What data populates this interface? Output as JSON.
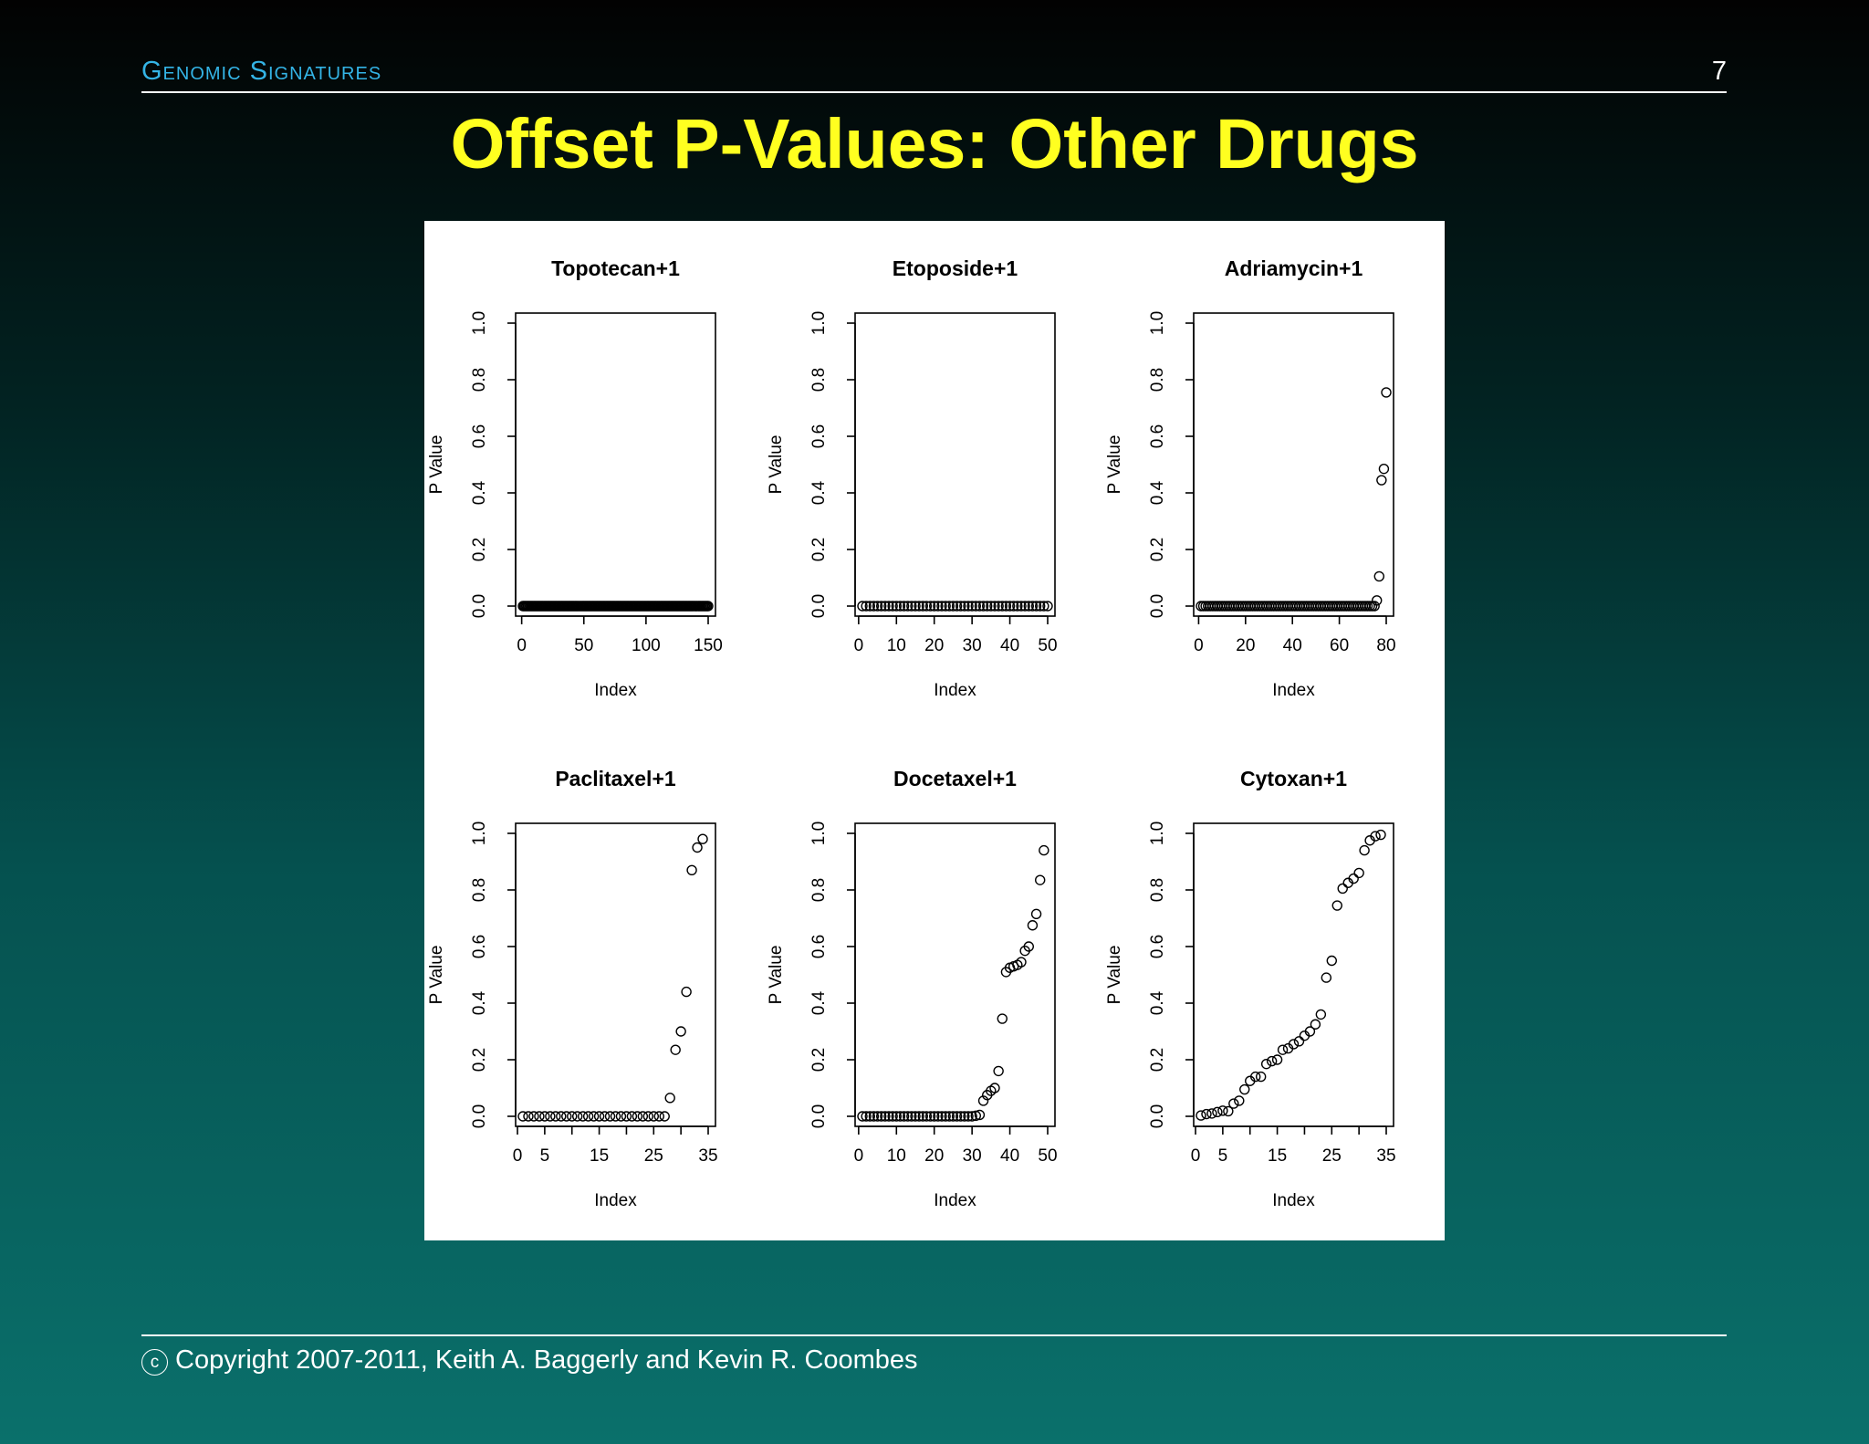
{
  "header": {
    "section": "Genomic Signatures",
    "page_number": "7"
  },
  "title": "Offset P-Values: Other Drugs",
  "footer": {
    "copyright_symbol": "c",
    "copyright": "Copyright 2007-2011, Keith A. Baggerly and Kevin R. Coombes"
  },
  "colors": {
    "title": "#ffff20",
    "section": "#34b4e6",
    "text": "#ffffff",
    "panel": "#ffffff",
    "marks": "#000000"
  },
  "chart_data": [
    {
      "type": "scatter",
      "title": "Topotecan+1",
      "xlabel": "Index",
      "ylabel": "P Value",
      "xlim": [
        1,
        150
      ],
      "ylim": [
        0,
        1
      ],
      "xticks": [
        0,
        50,
        100,
        150
      ],
      "yticks": [
        "0.0",
        "0.2",
        "0.4",
        "0.6",
        "0.8",
        "1.0"
      ],
      "note_values": "150 points, all approximately 0",
      "values": [
        0,
        0,
        0,
        0,
        0,
        0,
        0,
        0,
        0,
        0,
        0,
        0,
        0,
        0,
        0,
        0,
        0,
        0,
        0,
        0,
        0,
        0,
        0,
        0,
        0,
        0,
        0,
        0,
        0,
        0,
        0,
        0,
        0,
        0,
        0,
        0,
        0,
        0,
        0,
        0,
        0,
        0,
        0,
        0,
        0,
        0,
        0,
        0,
        0,
        0,
        0,
        0,
        0,
        0,
        0,
        0,
        0,
        0,
        0,
        0,
        0,
        0,
        0,
        0,
        0,
        0,
        0,
        0,
        0,
        0,
        0,
        0,
        0,
        0,
        0,
        0,
        0,
        0,
        0,
        0,
        0,
        0,
        0,
        0,
        0,
        0,
        0,
        0,
        0,
        0,
        0,
        0,
        0,
        0,
        0,
        0,
        0,
        0,
        0,
        0,
        0,
        0,
        0,
        0,
        0,
        0,
        0,
        0,
        0,
        0,
        0,
        0,
        0,
        0,
        0,
        0,
        0,
        0,
        0,
        0,
        0,
        0,
        0,
        0,
        0,
        0,
        0,
        0,
        0,
        0,
        0,
        0,
        0,
        0,
        0,
        0,
        0,
        0,
        0,
        0,
        0,
        0,
        0,
        0,
        0,
        0,
        0,
        0,
        0,
        0
      ]
    },
    {
      "type": "scatter",
      "title": "Etoposide+1",
      "xlabel": "Index",
      "ylabel": "P Value",
      "xlim": [
        1,
        50
      ],
      "ylim": [
        0,
        1
      ],
      "xticks": [
        0,
        10,
        20,
        30,
        40,
        50
      ],
      "yticks": [
        "0.0",
        "0.2",
        "0.4",
        "0.6",
        "0.8",
        "1.0"
      ],
      "values": [
        0,
        0,
        0,
        0,
        0,
        0,
        0,
        0,
        0,
        0,
        0,
        0,
        0,
        0,
        0,
        0,
        0,
        0,
        0,
        0,
        0,
        0,
        0,
        0,
        0,
        0,
        0,
        0,
        0,
        0,
        0,
        0,
        0,
        0,
        0,
        0,
        0,
        0,
        0,
        0,
        0,
        0,
        0,
        0,
        0,
        0,
        0,
        0,
        0,
        0
      ]
    },
    {
      "type": "scatter",
      "title": "Adriamycin+1",
      "xlabel": "Index",
      "ylabel": "P Value",
      "xlim": [
        1,
        80
      ],
      "ylim": [
        0,
        1
      ],
      "xticks": [
        0,
        20,
        40,
        60,
        80
      ],
      "yticks": [
        "0.0",
        "0.2",
        "0.4",
        "0.6",
        "0.8",
        "1.0"
      ],
      "values": [
        0,
        0,
        0,
        0,
        0,
        0,
        0,
        0,
        0,
        0,
        0,
        0,
        0,
        0,
        0,
        0,
        0,
        0,
        0,
        0,
        0,
        0,
        0,
        0,
        0,
        0,
        0,
        0,
        0,
        0,
        0,
        0,
        0,
        0,
        0,
        0,
        0,
        0,
        0,
        0,
        0,
        0,
        0,
        0,
        0,
        0,
        0,
        0,
        0,
        0,
        0,
        0,
        0,
        0,
        0,
        0,
        0,
        0,
        0,
        0,
        0,
        0,
        0,
        0,
        0,
        0,
        0,
        0,
        0,
        0,
        0,
        0,
        0,
        0,
        0,
        0.02,
        0.105,
        0.445,
        0.485,
        0.755
      ]
    },
    {
      "type": "scatter",
      "title": "Paclitaxel+1",
      "xlabel": "Index",
      "ylabel": "P Value",
      "xlim": [
        1,
        35
      ],
      "ylim": [
        0,
        1
      ],
      "xticks": [
        0,
        5,
        15,
        25,
        35
      ],
      "yticks": [
        "0.0",
        "0.2",
        "0.4",
        "0.6",
        "0.8",
        "1.0"
      ],
      "values": [
        0,
        0,
        0,
        0,
        0,
        0,
        0,
        0,
        0,
        0,
        0,
        0,
        0,
        0,
        0,
        0,
        0,
        0,
        0,
        0,
        0,
        0,
        0,
        0,
        0,
        0,
        0,
        0.065,
        0.235,
        0.3,
        0.44,
        0.87,
        0.95,
        0.98
      ]
    },
    {
      "type": "scatter",
      "title": "Docetaxel+1",
      "xlabel": "Index",
      "ylabel": "P Value",
      "xlim": [
        1,
        50
      ],
      "ylim": [
        0,
        1
      ],
      "xticks": [
        0,
        10,
        20,
        30,
        40,
        50
      ],
      "yticks": [
        "0.0",
        "0.2",
        "0.4",
        "0.6",
        "0.8",
        "1.0"
      ],
      "values": [
        0,
        0,
        0,
        0,
        0,
        0,
        0,
        0,
        0,
        0,
        0,
        0,
        0,
        0,
        0,
        0,
        0,
        0,
        0,
        0,
        0,
        0,
        0,
        0,
        0,
        0,
        0,
        0,
        0,
        0,
        0.002,
        0.005,
        0.055,
        0.075,
        0.09,
        0.1,
        0.16,
        0.345,
        0.51,
        0.525,
        0.53,
        0.535,
        0.545,
        0.585,
        0.6,
        0.675,
        0.715,
        0.835,
        0.94
      ]
    },
    {
      "type": "scatter",
      "title": "Cytoxan+1",
      "xlabel": "Index",
      "ylabel": "P Value",
      "xlim": [
        1,
        35
      ],
      "ylim": [
        0,
        1
      ],
      "xticks": [
        0,
        5,
        15,
        25,
        35
      ],
      "yticks": [
        "0.0",
        "0.2",
        "0.4",
        "0.6",
        "0.8",
        "1.0"
      ],
      "values": [
        0.003,
        0.008,
        0.01,
        0.015,
        0.02,
        0.018,
        0.045,
        0.055,
        0.095,
        0.125,
        0.14,
        0.14,
        0.185,
        0.195,
        0.2,
        0.235,
        0.24,
        0.255,
        0.265,
        0.285,
        0.3,
        0.325,
        0.36,
        0.49,
        0.55,
        0.745,
        0.805,
        0.825,
        0.84,
        0.86,
        0.94,
        0.975,
        0.99,
        0.995
      ]
    }
  ]
}
